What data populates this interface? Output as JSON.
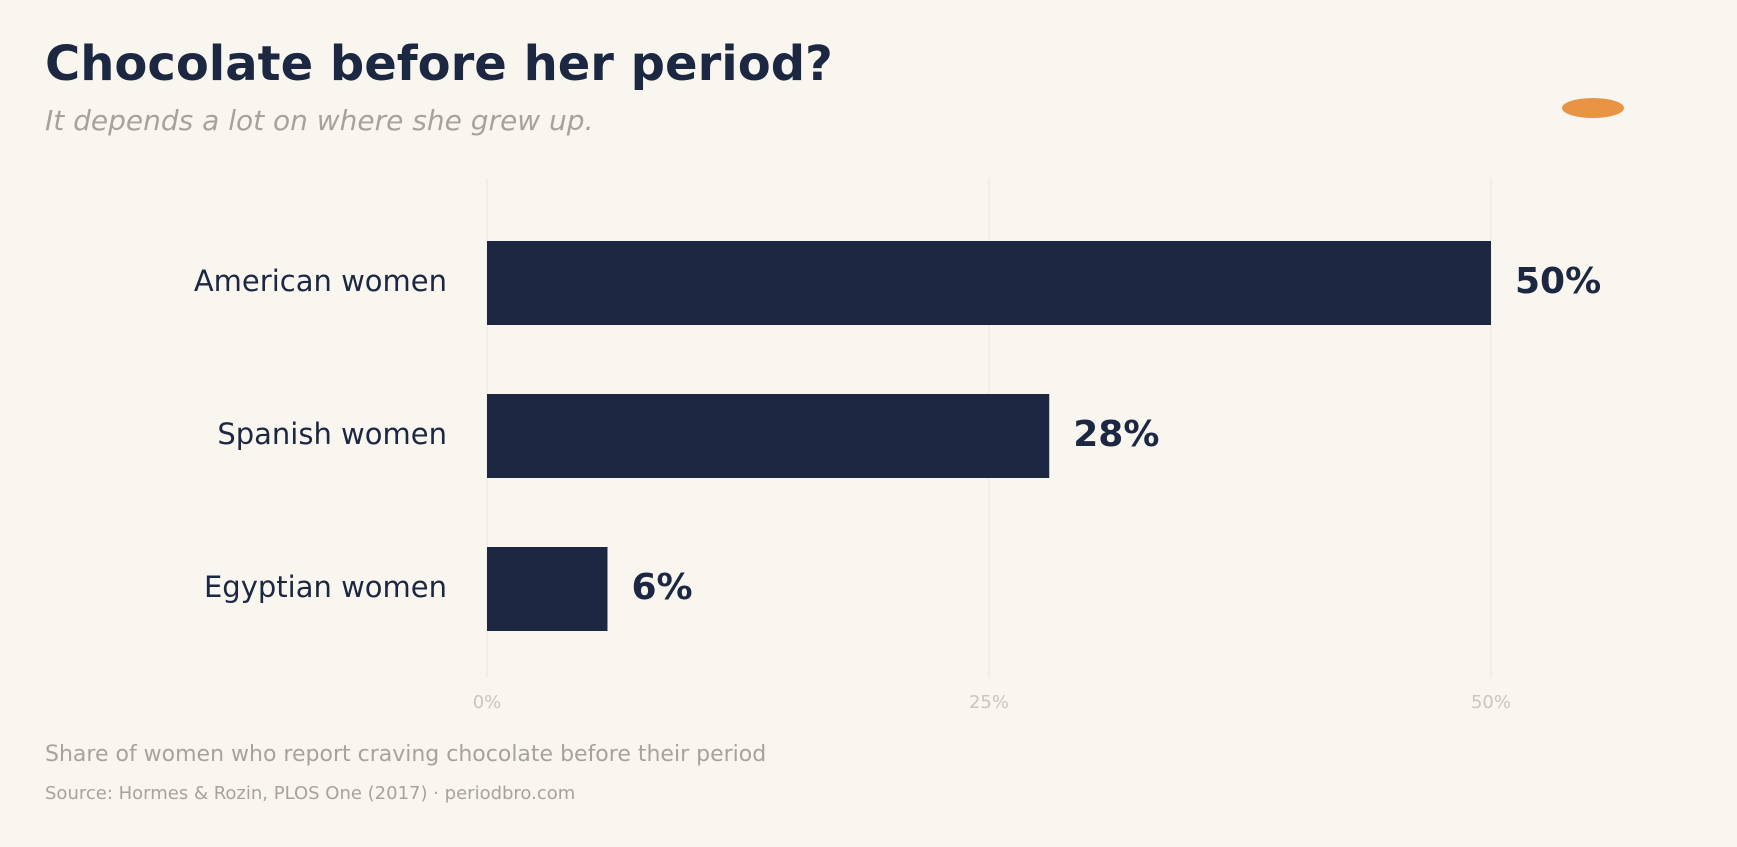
{
  "header": {
    "title": "Chocolate before her period?",
    "subtitle": "It depends a lot on where she grew up."
  },
  "footer": {
    "caption": "Share of women who report craving chocolate before their period",
    "source": "Source: Hormes & Rozin, PLOS One (2017)  ·  periodbro.com"
  },
  "colors": {
    "background": "#f9f6f0",
    "bar": "#1c2742",
    "text": "#1c2742",
    "muted": "#a6a39f",
    "tick": "#c9c6c1",
    "grid": "#ebe7e0",
    "accent": "#e89444"
  },
  "chart_data": {
    "type": "bar",
    "orientation": "horizontal",
    "title": "Chocolate before her period?",
    "subtitle": "It depends a lot on where she grew up.",
    "categories": [
      "American women",
      "Spanish women",
      "Egyptian women"
    ],
    "values": [
      50,
      28,
      6
    ],
    "data_labels": [
      "50%",
      "28%",
      "6%"
    ],
    "xlim": [
      0,
      50
    ],
    "xticks": [
      0,
      25,
      50
    ],
    "xtick_labels": [
      "0%",
      "25%",
      "50%"
    ],
    "xlabel": "",
    "ylabel": "",
    "grid": "vertical",
    "legend": "none"
  }
}
